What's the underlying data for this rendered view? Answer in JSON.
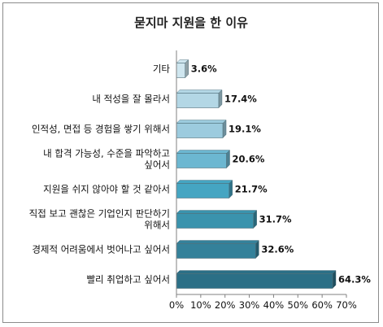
{
  "chart_data": {
    "type": "bar",
    "orientation": "horizontal",
    "title": "묻지마 지원을 한 이유",
    "categories": [
      "기타",
      "내 적성을 잘 몰라서",
      "인적성, 면접 등 경험을 쌓기 위해서",
      "내 합격 가능성, 수준을 파악하고 싶어서",
      "지원을 쉬지 않아야 할 것 같아서",
      "직접 보고 괜찮은 기업인지 판단하기 위해서",
      "경제적 어려움에서 벗어나고 싶어서",
      "빨리 취업하고 싶어서"
    ],
    "category_lines": [
      [
        "기타"
      ],
      [
        "내 적성을 잘 몰라서"
      ],
      [
        "인적성, 면접 등 경험을 쌓기 위해서"
      ],
      [
        "내 합격 가능성, 수준을 파악하고",
        "싶어서"
      ],
      [
        "지원을 쉬지 않아야 할 것 같아서"
      ],
      [
        "직접 보고 괜찮은 기업인지 판단하기",
        "위해서"
      ],
      [
        "경제적 어려움에서 벗어나고 싶어서"
      ],
      [
        "빨리 취업하고 싶어서"
      ]
    ],
    "values": [
      3.6,
      17.4,
      19.1,
      20.6,
      21.7,
      31.7,
      32.6,
      64.3
    ],
    "value_labels": [
      "3.6%",
      "17.4%",
      "19.1%",
      "20.6%",
      "21.7%",
      "31.7%",
      "32.6%",
      "64.3%"
    ],
    "xlim": [
      0,
      70
    ],
    "ticks": [
      0,
      10,
      20,
      30,
      40,
      50,
      60,
      70
    ],
    "tick_labels": [
      "0%",
      "10%",
      "20%",
      "30%",
      "40%",
      "50%",
      "60%",
      "70%"
    ],
    "grid": false,
    "legend": "none",
    "bar_colors": [
      "#cfe6ef",
      "#b3d7e5",
      "#9ccbde",
      "#6cb7d1",
      "#45a5c2",
      "#3a93ad",
      "#34819a",
      "#2b6f86"
    ],
    "axis_color": "#808080"
  }
}
